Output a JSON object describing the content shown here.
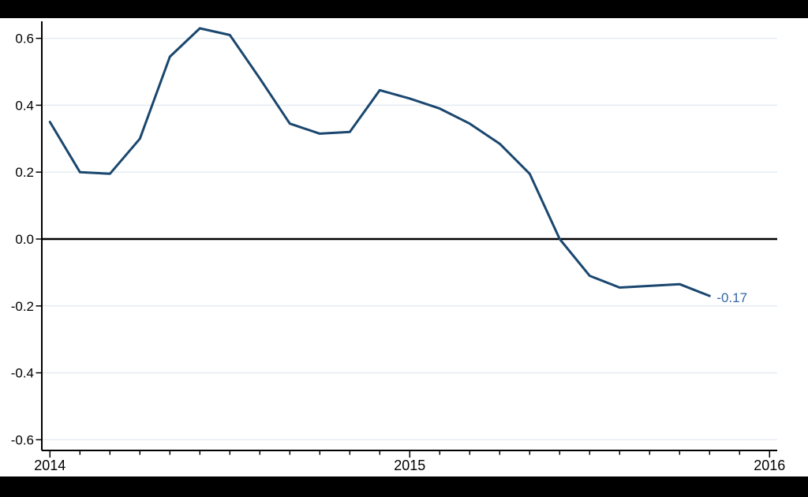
{
  "chart_data": {
    "type": "line",
    "title": "",
    "xlabel": "",
    "ylabel": "",
    "x": [
      "2014-01",
      "2014-02",
      "2014-03",
      "2014-04",
      "2014-05",
      "2014-06",
      "2014-07",
      "2014-08",
      "2014-09",
      "2014-10",
      "2014-11",
      "2014-12",
      "2015-01",
      "2015-02",
      "2015-03",
      "2015-04",
      "2015-05",
      "2015-06",
      "2015-07",
      "2015-08",
      "2015-09",
      "2015-10",
      "2015-11"
    ],
    "values": [
      0.35,
      0.2,
      0.195,
      0.3,
      0.545,
      0.63,
      0.61,
      0.48,
      0.345,
      0.315,
      0.32,
      0.445,
      0.42,
      0.39,
      0.345,
      0.285,
      0.195,
      0.0,
      -0.11,
      -0.145,
      -0.14,
      -0.135,
      -0.17
    ],
    "end_label": "-0.17",
    "x_axis": {
      "major_tick_labels": [
        "2014",
        "2015",
        "2016"
      ],
      "range_months": 24,
      "minor_tick_every_months": 1
    },
    "y_axis": {
      "tick_values": [
        0.6,
        0.4,
        0.2,
        0.0,
        -0.2,
        -0.4,
        -0.6
      ],
      "tick_labels": [
        "0.6",
        "0.4",
        "0.2",
        "0.0",
        "-0.2",
        "-0.4",
        "-0.6"
      ],
      "ylim": [
        -0.6,
        0.6
      ]
    },
    "grid": true,
    "zero_line": true,
    "legend_position": "none"
  },
  "colors": {
    "line": "#1a476f",
    "end_label": "#3565a8",
    "gridline": "#e6ecf2",
    "axis": "#000000",
    "tick_label": "#000000",
    "background": "#ffffff",
    "letterbox": "#000000"
  }
}
